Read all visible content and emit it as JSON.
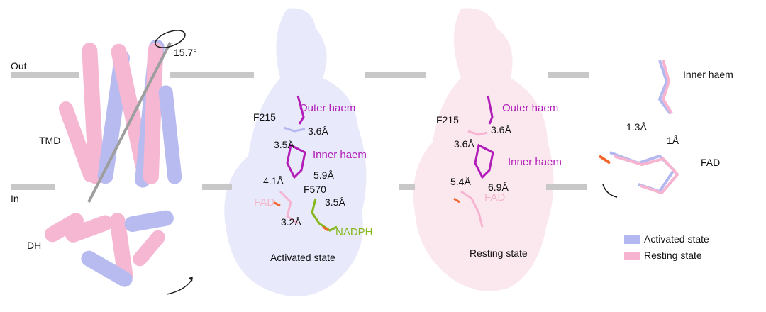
{
  "panel_structure": {
    "out": "Out",
    "in": "In",
    "tmd": "TMD",
    "dh": "DH",
    "angle": "15.7°"
  },
  "panel_activated": {
    "outer_haem": "Outer haem",
    "inner_haem": "Inner haem",
    "f215": "F215",
    "f570": "F570",
    "fad": "FAD",
    "nadph": "NADPH",
    "d1": "3.6Å",
    "d2": "3.5Å",
    "d3": "4.1Å",
    "d4": "5.9Å",
    "d5": "3.5Å",
    "d6": "3.2Å",
    "caption": "Activated state"
  },
  "panel_resting": {
    "outer_haem": "Outer haem",
    "inner_haem": "Inner haem",
    "f215": "F215",
    "fad": "FAD",
    "d1": "3.6Å",
    "d2": "3.6Å",
    "d3": "5.4Å",
    "d4": "6.9Å",
    "caption": "Resting state"
  },
  "panel_overlay": {
    "inner_haem": "Inner haem",
    "fad": "FAD",
    "d1": "1.3Å",
    "d2": "1Å"
  },
  "legend": [
    {
      "label": "Activated state",
      "color": "#b4b8f0"
    },
    {
      "label": "Resting state",
      "color": "#f6b4d0"
    }
  ],
  "colors": {
    "activated": "#b4b8f0",
    "resting": "#f6b4d0",
    "haem": "#b21cb8",
    "nadph": "#86b81e",
    "membrane": "#c8c8c8"
  }
}
